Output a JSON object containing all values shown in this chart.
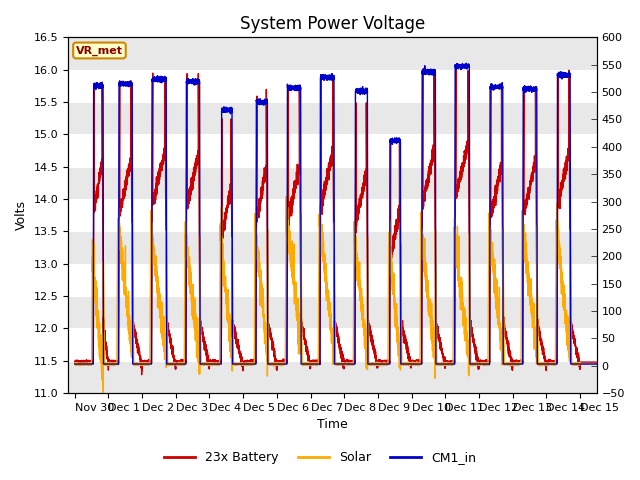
{
  "title": "System Power Voltage",
  "xlabel": "Time",
  "ylabel": "Volts",
  "xlim": [
    -0.2,
    15.5
  ],
  "ylim_left": [
    11.0,
    16.5
  ],
  "ylim_right": [
    -50,
    600
  ],
  "yticks_left": [
    11.0,
    11.5,
    12.0,
    12.5,
    13.0,
    13.5,
    14.0,
    14.5,
    15.0,
    15.5,
    16.0,
    16.5
  ],
  "yticks_right": [
    -50,
    0,
    50,
    100,
    150,
    200,
    250,
    300,
    350,
    400,
    450,
    500,
    550,
    600
  ],
  "xtick_labels": [
    "Nov 30",
    "Dec 1",
    "Dec 2",
    "Dec 3",
    "Dec 4",
    "Dec 5",
    "Dec 6",
    "Dec 7",
    "Dec 8",
    "Dec 9",
    "Dec 10",
    "Dec 11",
    "Dec 12",
    "Dec 13",
    "Dec 14",
    "Dec 15"
  ],
  "xtick_positions": [
    0,
    1,
    2,
    3,
    4,
    5,
    6,
    7,
    8,
    9,
    10,
    11,
    12,
    13,
    14,
    15
  ],
  "legend_entries": [
    "23x Battery",
    "Solar",
    "CM1_in"
  ],
  "legend_colors": [
    "#cc0000",
    "#ffaa00",
    "#0000cc"
  ],
  "battery_color": "#cc0000",
  "solar_color": "#ffaa00",
  "cm1_color": "#0000cc",
  "vr_met_label": "VR_met",
  "fig_bg": "#ffffff",
  "plot_bg_light": "#f0f0f0",
  "plot_bg_dark": "#e0e0e0",
  "grid_color": "#ffffff",
  "title_fontsize": 12,
  "axis_fontsize": 9,
  "tick_fontsize": 8,
  "linewidth": 1.0
}
